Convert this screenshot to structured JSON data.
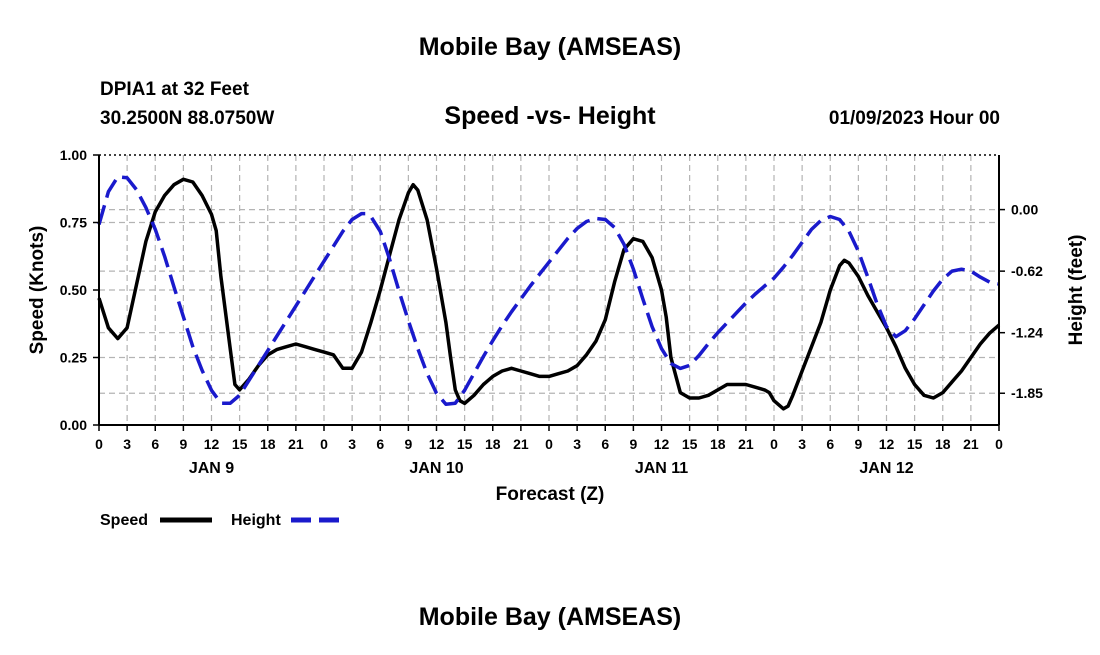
{
  "chart_data": {
    "type": "line",
    "title": "Mobile Bay (AMSEAS)",
    "footer_title": "Mobile Bay (AMSEAS)",
    "station": "DPIA1 at 32 Feet",
    "coords": "30.2500N  88.0750W",
    "subtitle": "Speed -vs- Height",
    "datetime": "01/09/2023 Hour 00",
    "xlabel": "Forecast (Z)",
    "ylabel_left": "Speed (Knots)",
    "ylabel_right": "Height (feet)",
    "x_hours_range": [
      0,
      96
    ],
    "ylim_left": [
      0,
      1.0
    ],
    "ylim_right": [
      -2.17,
      0.55
    ],
    "left_ticks": [
      0.0,
      0.25,
      0.5,
      0.75,
      1.0
    ],
    "left_tick_labels": [
      "0.00",
      "0.25",
      "0.50",
      "0.75",
      "1.00"
    ],
    "right_ticks": [
      0.0,
      -0.62,
      -1.24,
      -1.85
    ],
    "right_tick_labels": [
      "0.00",
      "-0.62",
      "-1.24",
      "-1.85"
    ],
    "x_tick_hours": [
      0,
      3,
      6,
      9,
      12,
      15,
      18,
      21,
      24,
      27,
      30,
      33,
      36,
      39,
      42,
      45,
      48,
      51,
      54,
      57,
      60,
      63,
      66,
      69,
      72,
      75,
      78,
      81,
      84,
      87,
      90,
      93,
      96
    ],
    "x_tick_labels": [
      "0",
      "3",
      "6",
      "9",
      "12",
      "15",
      "18",
      "21",
      "0",
      "3",
      "6",
      "9",
      "12",
      "15",
      "18",
      "21",
      "0",
      "3",
      "6",
      "9",
      "12",
      "15",
      "18",
      "21",
      "0",
      "3",
      "6",
      "9",
      "12",
      "15",
      "18",
      "21",
      "0"
    ],
    "day_labels": [
      {
        "hour": 12,
        "label": "JAN 9"
      },
      {
        "hour": 36,
        "label": "JAN 10"
      },
      {
        "hour": 60,
        "label": "JAN 11"
      },
      {
        "hour": 84,
        "label": "JAN 12"
      }
    ],
    "grid": true,
    "legend_position": "bottom-left",
    "series": [
      {
        "name": "Speed",
        "axis": "left",
        "color": "#000000",
        "style": "solid",
        "points": [
          [
            0,
            0.47
          ],
          [
            1,
            0.36
          ],
          [
            2,
            0.32
          ],
          [
            3,
            0.36
          ],
          [
            4,
            0.52
          ],
          [
            5,
            0.68
          ],
          [
            6,
            0.79
          ],
          [
            7,
            0.85
          ],
          [
            8,
            0.89
          ],
          [
            9,
            0.91
          ],
          [
            10,
            0.9
          ],
          [
            11,
            0.85
          ],
          [
            12,
            0.78
          ],
          [
            12.5,
            0.72
          ],
          [
            13,
            0.55
          ],
          [
            14,
            0.28
          ],
          [
            14.5,
            0.15
          ],
          [
            15,
            0.13
          ],
          [
            16,
            0.17
          ],
          [
            17,
            0.22
          ],
          [
            18,
            0.26
          ],
          [
            19,
            0.28
          ],
          [
            20,
            0.29
          ],
          [
            21,
            0.3
          ],
          [
            22,
            0.29
          ],
          [
            23,
            0.28
          ],
          [
            24,
            0.27
          ],
          [
            25,
            0.26
          ],
          [
            26,
            0.21
          ],
          [
            27,
            0.21
          ],
          [
            28,
            0.27
          ],
          [
            29,
            0.38
          ],
          [
            30,
            0.5
          ],
          [
            31,
            0.63
          ],
          [
            32,
            0.76
          ],
          [
            33,
            0.86
          ],
          [
            33.5,
            0.89
          ],
          [
            34,
            0.87
          ],
          [
            35,
            0.76
          ],
          [
            36,
            0.58
          ],
          [
            37,
            0.38
          ],
          [
            37.5,
            0.25
          ],
          [
            38,
            0.13
          ],
          [
            38.5,
            0.09
          ],
          [
            39,
            0.08
          ],
          [
            40,
            0.11
          ],
          [
            41,
            0.15
          ],
          [
            42,
            0.18
          ],
          [
            43,
            0.2
          ],
          [
            44,
            0.21
          ],
          [
            45,
            0.2
          ],
          [
            46,
            0.19
          ],
          [
            47,
            0.18
          ],
          [
            48,
            0.18
          ],
          [
            49,
            0.19
          ],
          [
            50,
            0.2
          ],
          [
            51,
            0.22
          ],
          [
            52,
            0.26
          ],
          [
            53,
            0.31
          ],
          [
            54,
            0.39
          ],
          [
            55,
            0.53
          ],
          [
            56,
            0.65
          ],
          [
            57,
            0.69
          ],
          [
            58,
            0.68
          ],
          [
            59,
            0.62
          ],
          [
            60,
            0.5
          ],
          [
            60.5,
            0.4
          ],
          [
            61,
            0.25
          ],
          [
            62,
            0.12
          ],
          [
            63,
            0.1
          ],
          [
            64,
            0.1
          ],
          [
            65,
            0.11
          ],
          [
            66,
            0.13
          ],
          [
            67,
            0.15
          ],
          [
            68,
            0.15
          ],
          [
            69,
            0.15
          ],
          [
            70,
            0.14
          ],
          [
            71,
            0.13
          ],
          [
            71.5,
            0.12
          ],
          [
            72,
            0.09
          ],
          [
            73,
            0.06
          ],
          [
            73.5,
            0.07
          ],
          [
            74,
            0.11
          ],
          [
            75,
            0.2
          ],
          [
            76,
            0.29
          ],
          [
            77,
            0.38
          ],
          [
            78,
            0.5
          ],
          [
            79,
            0.59
          ],
          [
            79.5,
            0.61
          ],
          [
            80,
            0.6
          ],
          [
            81,
            0.55
          ],
          [
            82,
            0.48
          ],
          [
            83,
            0.42
          ],
          [
            84,
            0.36
          ],
          [
            85,
            0.29
          ],
          [
            86,
            0.21
          ],
          [
            87,
            0.15
          ],
          [
            88,
            0.11
          ],
          [
            89,
            0.1
          ],
          [
            90,
            0.12
          ],
          [
            91,
            0.16
          ],
          [
            92,
            0.2
          ],
          [
            93,
            0.25
          ],
          [
            94,
            0.3
          ],
          [
            95,
            0.34
          ],
          [
            96,
            0.37
          ]
        ]
      },
      {
        "name": "Height",
        "axis": "right",
        "color": "#1a1acc",
        "style": "dashed",
        "points": [
          [
            0,
            -0.15
          ],
          [
            1,
            0.18
          ],
          [
            2,
            0.33
          ],
          [
            3,
            0.32
          ],
          [
            4,
            0.2
          ],
          [
            5,
            0.02
          ],
          [
            6,
            -0.2
          ],
          [
            7,
            -0.47
          ],
          [
            8,
            -0.78
          ],
          [
            9,
            -1.08
          ],
          [
            10,
            -1.38
          ],
          [
            11,
            -1.62
          ],
          [
            12,
            -1.82
          ],
          [
            13,
            -1.95
          ],
          [
            14,
            -1.95
          ],
          [
            15,
            -1.87
          ],
          [
            16,
            -1.72
          ],
          [
            17,
            -1.57
          ],
          [
            18,
            -1.42
          ],
          [
            19,
            -1.27
          ],
          [
            20,
            -1.12
          ],
          [
            21,
            -0.97
          ],
          [
            22,
            -0.82
          ],
          [
            23,
            -0.67
          ],
          [
            24,
            -0.52
          ],
          [
            25,
            -0.37
          ],
          [
            26,
            -0.22
          ],
          [
            27,
            -0.1
          ],
          [
            28,
            -0.04
          ],
          [
            28.5,
            -0.04
          ],
          [
            29,
            -0.07
          ],
          [
            30,
            -0.22
          ],
          [
            31,
            -0.5
          ],
          [
            32,
            -0.82
          ],
          [
            33,
            -1.12
          ],
          [
            34,
            -1.4
          ],
          [
            35,
            -1.65
          ],
          [
            36,
            -1.85
          ],
          [
            37,
            -1.96
          ],
          [
            38,
            -1.95
          ],
          [
            39,
            -1.82
          ],
          [
            40,
            -1.65
          ],
          [
            41,
            -1.48
          ],
          [
            42,
            -1.32
          ],
          [
            43,
            -1.17
          ],
          [
            44,
            -1.03
          ],
          [
            45,
            -0.9
          ],
          [
            46,
            -0.77
          ],
          [
            47,
            -0.65
          ],
          [
            48,
            -0.53
          ],
          [
            49,
            -0.41
          ],
          [
            50,
            -0.29
          ],
          [
            51,
            -0.19
          ],
          [
            52,
            -0.12
          ],
          [
            53,
            -0.09
          ],
          [
            54,
            -0.1
          ],
          [
            55,
            -0.18
          ],
          [
            56,
            -0.35
          ],
          [
            57,
            -0.6
          ],
          [
            58,
            -0.9
          ],
          [
            59,
            -1.18
          ],
          [
            60,
            -1.4
          ],
          [
            61,
            -1.55
          ],
          [
            62,
            -1.6
          ],
          [
            63,
            -1.57
          ],
          [
            64,
            -1.47
          ],
          [
            65,
            -1.35
          ],
          [
            66,
            -1.24
          ],
          [
            67,
            -1.14
          ],
          [
            68,
            -1.04
          ],
          [
            69,
            -0.94
          ],
          [
            70,
            -0.85
          ],
          [
            71,
            -0.77
          ],
          [
            72,
            -0.69
          ],
          [
            73,
            -0.58
          ],
          [
            74,
            -0.46
          ],
          [
            75,
            -0.33
          ],
          [
            76,
            -0.2
          ],
          [
            77,
            -0.11
          ],
          [
            78,
            -0.07
          ],
          [
            79,
            -0.1
          ],
          [
            80,
            -0.22
          ],
          [
            81,
            -0.42
          ],
          [
            82,
            -0.68
          ],
          [
            83,
            -0.95
          ],
          [
            84,
            -1.18
          ],
          [
            85,
            -1.28
          ],
          [
            86,
            -1.22
          ],
          [
            87,
            -1.1
          ],
          [
            88,
            -0.96
          ],
          [
            89,
            -0.82
          ],
          [
            90,
            -0.7
          ],
          [
            91,
            -0.62
          ],
          [
            92,
            -0.6
          ],
          [
            93,
            -0.62
          ],
          [
            94,
            -0.68
          ],
          [
            95,
            -0.73
          ],
          [
            96,
            -0.75
          ]
        ]
      }
    ]
  }
}
